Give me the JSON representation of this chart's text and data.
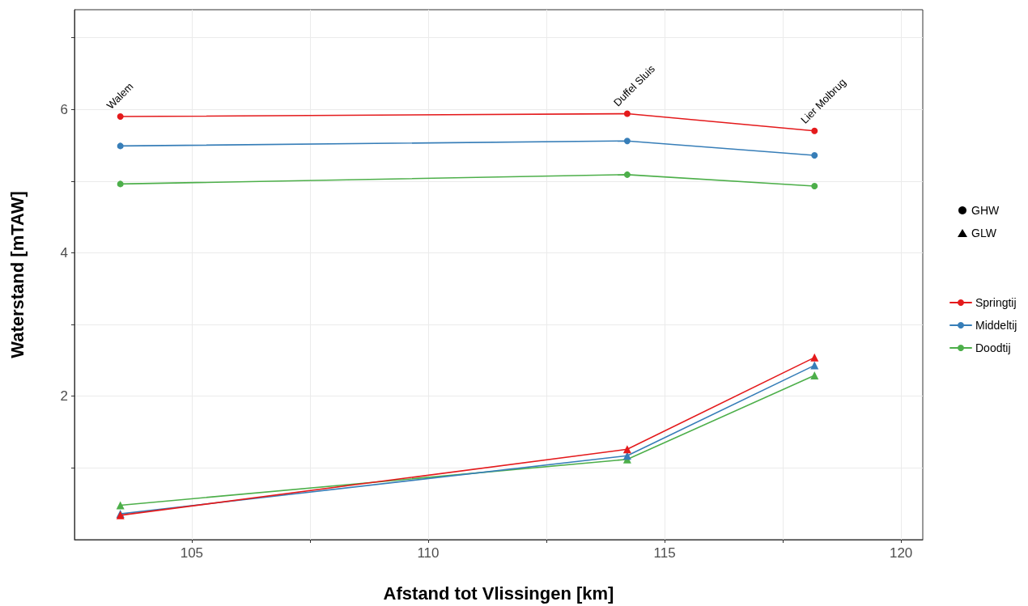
{
  "chart_data": {
    "type": "line",
    "xlabel": "Afstand tot Vlissingen [km]",
    "ylabel": "Waterstand [mTAW]",
    "x": [
      103.49,
      114.21,
      118.17
    ],
    "xlim": [
      102.52,
      120.46
    ],
    "xticks": [
      105,
      {
        "value": 107.5,
        "label": null
      },
      110,
      {
        "value": 112.5,
        "label": null
      },
      115,
      {
        "value": 117.5,
        "label": null
      },
      120
    ],
    "ylim": [
      0,
      7.39
    ],
    "yticks": [
      {
        "value": 1,
        "label": null
      },
      2,
      {
        "value": 3,
        "label": null
      },
      4,
      {
        "value": 5,
        "label": null
      },
      6,
      {
        "value": 7,
        "label": null
      }
    ],
    "grid": true,
    "legend": "right",
    "line_style": "solid",
    "series": [
      {
        "name": "GHW",
        "color": "#000000",
        "marker": "circle",
        "values": [
          null,
          null,
          null
        ]
      },
      {
        "name": "GLW",
        "color": "#000000",
        "marker": "triangle",
        "values": [
          null,
          null,
          null
        ]
      },
      {
        "name": "Springtij",
        "color": "#e41a1c",
        "marker": "circle",
        "values": [
          5.9,
          5.94,
          5.7
        ]
      },
      {
        "name": "Middeltij",
        "color": "#377eb8",
        "marker": "circle",
        "values": [
          5.49,
          5.56,
          5.36
        ]
      },
      {
        "name": "Doodtij",
        "color": "#4daf4a",
        "marker": "circle",
        "values": [
          4.96,
          5.09,
          4.93
        ]
      },
      {
        "color": "#e41a1c",
        "marker": "triangle",
        "values": [
          0.34,
          1.26,
          2.54
        ]
      },
      {
        "color": "#377eb8",
        "marker": "triangle",
        "values": [
          0.36,
          1.17,
          2.43
        ]
      },
      {
        "color": "#4daf4a",
        "marker": "triangle",
        "values": [
          0.48,
          1.12,
          2.29
        ]
      }
    ],
    "annotations": [
      {
        "text": "Walem",
        "x": 103.49,
        "y": 6.0
      },
      {
        "text": "Duffel Sluis",
        "x": 114.21,
        "y": 6.04
      },
      {
        "text": "Lier Molbrug",
        "x": 118.17,
        "y": 5.8
      }
    ]
  }
}
